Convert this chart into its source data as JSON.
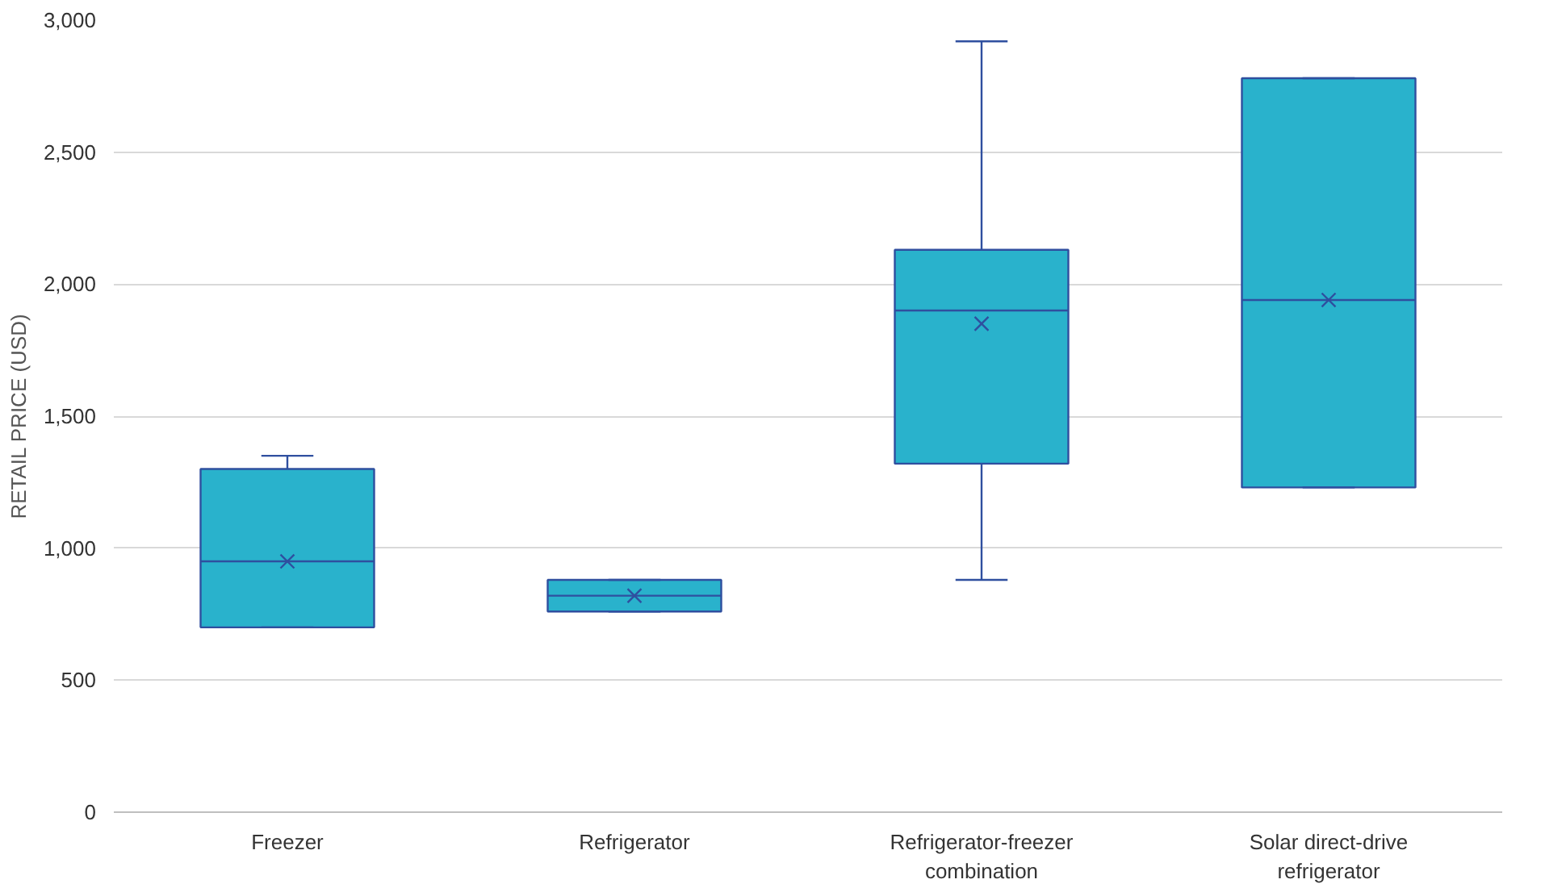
{
  "chart_data": {
    "type": "box",
    "ylabel": "RETAIL PRICE (USD)",
    "categories": [
      "Freezer",
      "Refrigerator",
      "Refrigerator-freezer combination",
      "Solar direct-drive refrigerator"
    ],
    "series": [
      {
        "color": "#29b2cc",
        "boxes": [
          {
            "low": 700,
            "q1": 700,
            "median": 950,
            "q3": 1300,
            "high": 1350,
            "mean": 950
          },
          {
            "low": 760,
            "q1": 760,
            "median": 820,
            "q3": 880,
            "high": 880,
            "mean": 820
          },
          {
            "low": 880,
            "q1": 1320,
            "median": 1900,
            "q3": 2130,
            "high": 2920,
            "mean": 1850
          },
          {
            "low": 1230,
            "q1": 1230,
            "median": 1940,
            "q3": 2780,
            "high": 2780,
            "mean": 1940
          }
        ]
      }
    ],
    "ylim": [
      0,
      3000
    ],
    "yticks": [
      0,
      500,
      {
        "value": 1000,
        "label": "1,000"
      },
      {
        "value": 1500,
        "label": "1,500"
      },
      {
        "value": 2000,
        "label": "2,000"
      },
      {
        "value": 2500,
        "label": "2,500"
      },
      {
        "value": 3000,
        "label": "3,000"
      }
    ],
    "grid": "y"
  }
}
